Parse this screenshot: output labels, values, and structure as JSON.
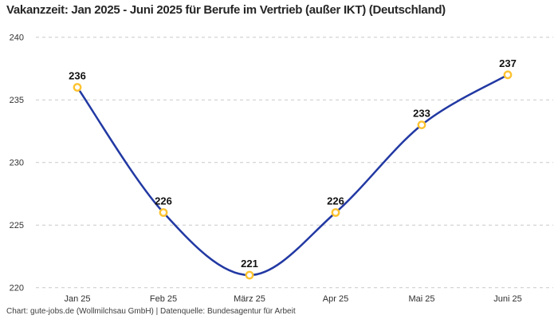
{
  "title": "Vakanzzeit: Jan 2025 - Juni 2025 für Berufe im Vertrieb (außer IKT) (Deutschland)",
  "footer": "Chart: gute-jobs.de (Wollmilchsau GmbH) | Datenquelle: Bundesagentur für Arbeit",
  "colors": {
    "background": "#ffffff",
    "line": "#2239a3",
    "marker_ring": "#fdc330",
    "marker_fill": "#ffffff",
    "grid": "#c9c9c9",
    "title_text": "#262626",
    "axis_text": "#333333",
    "value_text": "#111111",
    "footer_text": "#3d3d3d"
  },
  "chart_data": {
    "type": "line",
    "title": "Vakanzzeit: Jan 2025 - Juni 2025 für Berufe im Vertrieb (außer IKT) (Deutschland)",
    "categories": [
      "Jan 25",
      "Feb 25",
      "März 25",
      "Apr 25",
      "Mai 25",
      "Juni 25"
    ],
    "values": [
      236,
      226,
      221,
      226,
      233,
      237
    ],
    "series_name": "Vakanzzeit",
    "xlabel": "",
    "ylabel": "",
    "ylim": [
      220,
      240
    ],
    "yticks": [
      220,
      225,
      230,
      235,
      240
    ],
    "grid": "horizontal-dashed",
    "legend": "none",
    "smooth": true,
    "data_labels": true,
    "attribution": "Chart: gute-jobs.de (Wollmilchsau GmbH) | Datenquelle: Bundesagentur für Arbeit"
  }
}
